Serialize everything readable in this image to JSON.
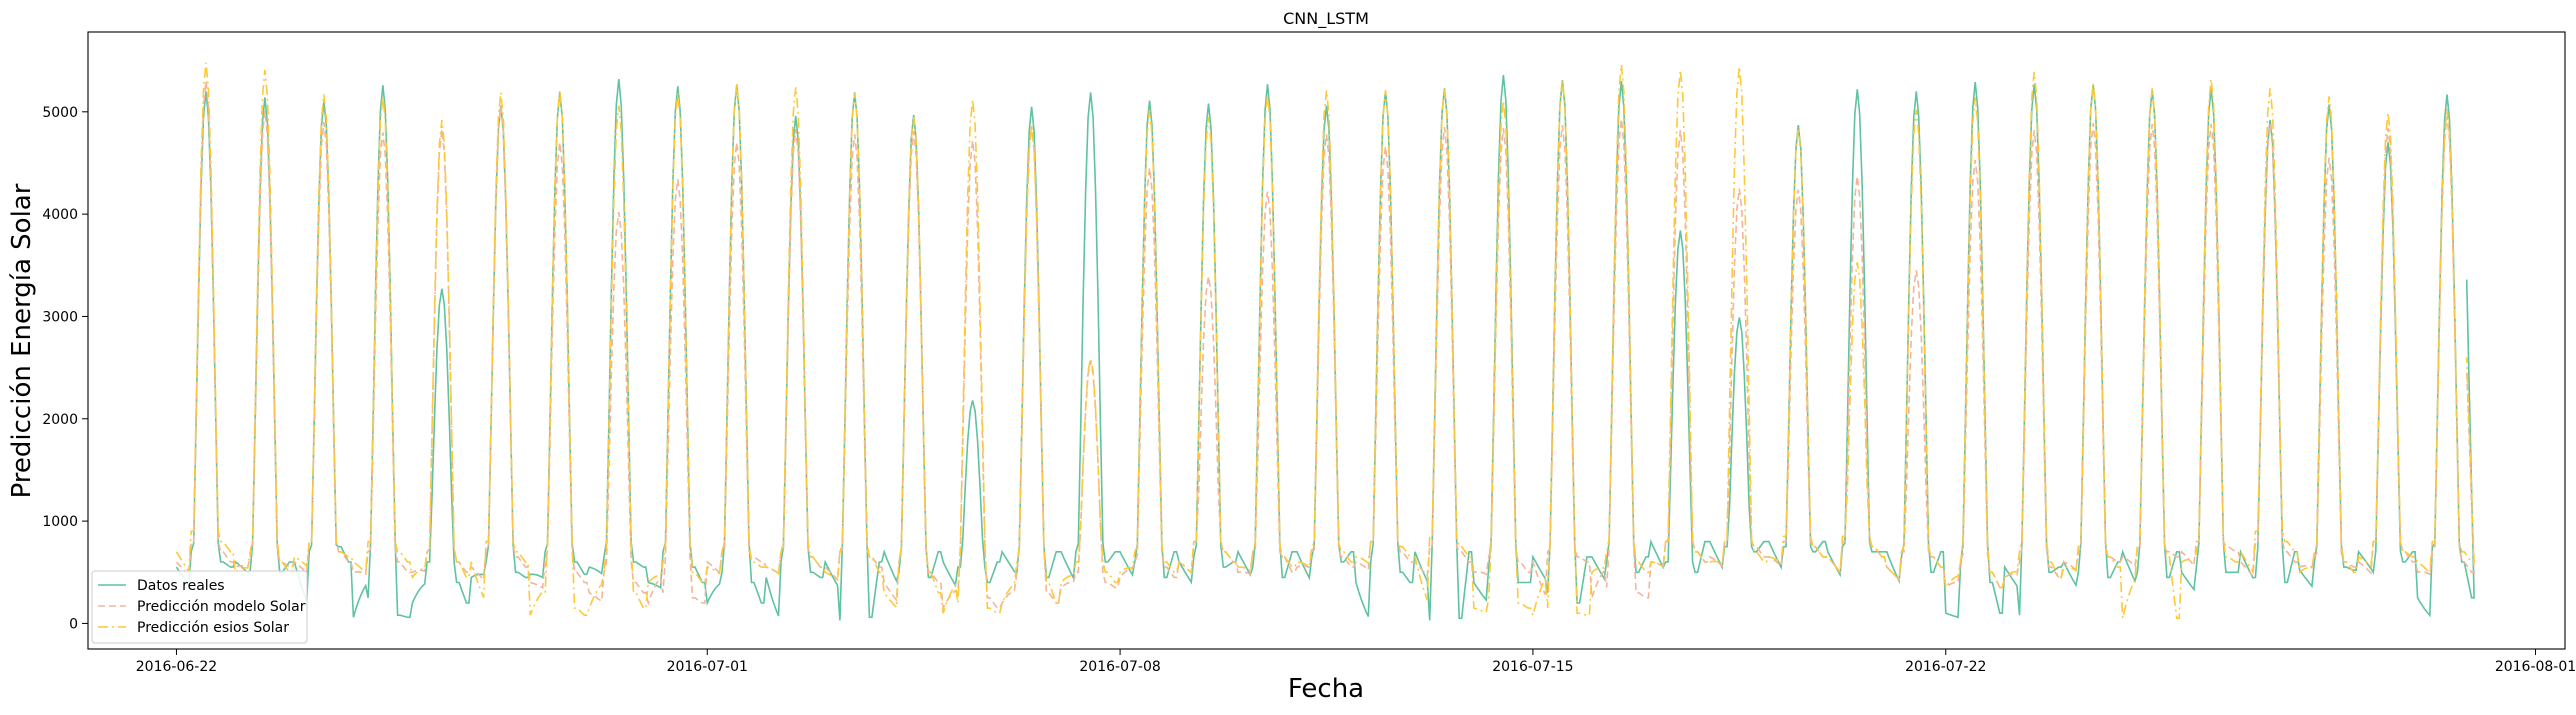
{
  "chart_data": {
    "type": "line",
    "title": "CNN_LSTM",
    "xlabel": "Fecha",
    "ylabel": "Predicción Energía Solar",
    "x_range": [
      "2016-06-20T12:00",
      "2016-08-01T12:00"
    ],
    "ylim": [
      -250,
      5780
    ],
    "x_ticks": [
      "2016-06-22",
      "2016-07-01",
      "2016-07-08",
      "2016-07-15",
      "2016-07-22",
      "2016-08-01"
    ],
    "y_ticks": [
      0,
      1000,
      2000,
      3000,
      4000,
      5000
    ],
    "grid": false,
    "legend_position": "lower-left",
    "series": [
      {
        "name": "Datos reales",
        "color": "#5fc2a0",
        "style": "solid",
        "start": "2016-06-22T00:00",
        "step_hours": 1,
        "night_values": [
          700,
          600,
          550,
          520,
          500,
          600,
          700,
          750,
          600,
          250,
          80,
          60,
          600,
          400,
          200,
          600,
          500,
          450,
          700,
          600,
          480,
          650,
          600,
          550,
          700,
          550,
          400,
          500,
          400,
          200,
          600,
          500,
          450,
          30,
          60,
          600,
          500,
          450,
          700,
          550,
          400,
          600,
          500,
          450,
          700,
          700,
          600,
          700,
          600,
          450,
          700,
          650,
          550,
          600,
          550,
          450,
          700,
          650,
          600,
          700,
          600,
          500,
          400,
          30,
          50,
          700,
          550,
          400,
          400,
          300,
          200,
          650,
          600,
          500,
          650,
          600,
          500,
          800,
          750,
          700,
          800,
          750,
          700,
          800,
          750,
          700,
          700,
          650,
          500,
          700,
          550,
          400,
          100,
          80,
          500,
          550,
          500,
          450,
          600,
          500,
          450,
          700,
          550,
          500,
          500,
          450,
          400
        ],
        "peak_values": [
          5200,
          5140,
          5100,
          5260,
          3270,
          5060,
          5190,
          5320,
          5250,
          5260,
          4960,
          5190,
          4970,
          2180,
          5050,
          5190,
          5110,
          5080,
          5270,
          5060,
          5200,
          5230,
          5360,
          5310,
          5300,
          3840,
          2990,
          4870,
          5220,
          5200,
          5290,
          5270,
          5270,
          5210,
          5230,
          4920,
          5070,
          4700,
          5170
        ],
        "end_value": 3360
      },
      {
        "name": "Predicción modelo Solar",
        "color": "#f2b49b",
        "style": "dashed",
        "start": "2016-06-22T00:00",
        "step_hours": 1,
        "night_values": [
          800,
          700,
          600,
          650,
          600,
          550,
          800,
          700,
          600,
          700,
          600,
          500,
          700,
          600,
          500,
          750,
          650,
          550,
          600,
          500,
          400,
          500,
          400,
          300,
          300,
          250,
          200,
          700,
          650,
          600,
          700,
          650,
          550,
          700,
          650,
          550,
          600,
          500,
          400,
          300,
          250,
          150,
          500,
          300,
          200,
          500,
          400,
          350,
          600,
          550,
          450,
          800,
          700,
          600,
          700,
          650,
          500,
          700,
          650,
          550,
          800,
          700,
          600,
          750,
          700,
          600,
          650,
          600,
          500,
          700,
          650,
          600,
          350,
          300,
          250,
          800,
          700,
          600,
          800,
          750,
          650,
          800,
          750,
          650,
          800,
          750,
          650,
          700,
          650,
          550,
          600,
          500,
          350,
          600,
          550,
          450,
          700,
          650,
          600,
          750,
          700,
          650,
          800,
          750,
          700
        ],
        "peak_values": [
          5300,
          5010,
          4900,
          4800,
          4830,
          5050,
          4700,
          4020,
          4340,
          4700,
          4830,
          4780,
          4810,
          4720,
          4860,
          2560,
          4450,
          3390,
          4220,
          4780,
          4660,
          4850,
          4840,
          4870,
          4930,
          4820,
          4250,
          4240,
          4370,
          3450,
          4530,
          4820,
          4890,
          4880,
          4880,
          4880,
          4550,
          4840,
          4960
        ],
        "end_value": 2480
      },
      {
        "name": "Predicción esios Solar",
        "color": "#fdc937",
        "style": "dashdot",
        "start": "2016-06-22T00:00",
        "step_hours": 1,
        "night_values": [
          900,
          800,
          700,
          700,
          600,
          500,
          800,
          700,
          650,
          800,
          700,
          600,
          700,
          600,
          450,
          800,
          700,
          600,
          300,
          150,
          80,
          500,
          300,
          150,
          600,
          500,
          400,
          700,
          600,
          550,
          700,
          650,
          550,
          700,
          650,
          500,
          600,
          500,
          300,
          200,
          150,
          100,
          600,
          400,
          200,
          600,
          500,
          400,
          700,
          600,
          500,
          800,
          700,
          600,
          700,
          650,
          550,
          750,
          700,
          600,
          800,
          750,
          650,
          850,
          750,
          650,
          250,
          200,
          150,
          150,
          100,
          80,
          700,
          600,
          500,
          800,
          700,
          600,
          800,
          700,
          600,
          850,
          750,
          650,
          850,
          750,
          650,
          700,
          650,
          550,
          600,
          500,
          350,
          700,
          600,
          450,
          750,
          650,
          550,
          750,
          650,
          50,
          700,
          650,
          600
        ],
        "peak_values": [
          5480,
          5410,
          5170,
          5150,
          4920,
          5190,
          5210,
          5060,
          5180,
          5280,
          5240,
          5180,
          4950,
          5120,
          4870,
          2590,
          5020,
          4950,
          5170,
          5210,
          5210,
          5220,
          5110,
          5320,
          5460,
          5410,
          5440,
          4840,
          3530,
          5020,
          5140,
          5390,
          5280,
          5230,
          5320,
          5230,
          5150,
          4990,
          5030
        ],
        "end_value": 2600
      }
    ]
  }
}
